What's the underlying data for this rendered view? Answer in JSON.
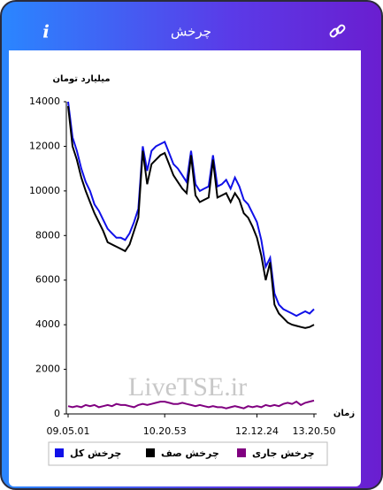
{
  "header": {
    "title": "چرخش",
    "info": "i"
  },
  "chart_data": {
    "type": "line",
    "y_label": "میلیارد تومان",
    "x_label": "زمان",
    "watermark": "LiveTSE.ir",
    "categories": [
      "09.05.01",
      null,
      null,
      null,
      null,
      null,
      null,
      null,
      null,
      null,
      null,
      null,
      null,
      null,
      null,
      null,
      null,
      null,
      null,
      null,
      null,
      null,
      "10.20.53",
      null,
      null,
      null,
      null,
      null,
      null,
      null,
      null,
      null,
      null,
      null,
      null,
      null,
      null,
      null,
      null,
      null,
      null,
      null,
      null,
      "12.12.24",
      null,
      null,
      null,
      null,
      null,
      null,
      null,
      null,
      null,
      null,
      null,
      null,
      "13.20.50"
    ],
    "series": [
      {
        "name": "چرخش کل",
        "color": "#1010e8",
        "values": [
          14000,
          12400,
          11800,
          11000,
          10400,
          10000,
          9400,
          9100,
          8700,
          8300,
          8100,
          7900,
          7900,
          7800,
          8100,
          8600,
          9200,
          12000,
          10900,
          11800,
          12000,
          12100,
          12200,
          11700,
          11200,
          11000,
          10700,
          10400,
          11800,
          10300,
          10000,
          10100,
          10200,
          11600,
          10200,
          10300,
          10500,
          10100,
          10600,
          10200,
          9600,
          9400,
          9000,
          8600,
          7800,
          6600,
          7000,
          5400,
          4900,
          4700,
          4600,
          4500,
          4400,
          4500,
          4600,
          4500,
          4700
        ]
      },
      {
        "name": "چرخش صف",
        "color": "#000000",
        "values": [
          13800,
          12000,
          11400,
          10600,
          10000,
          9500,
          9000,
          8600,
          8200,
          7700,
          7600,
          7500,
          7400,
          7300,
          7600,
          8200,
          8800,
          11800,
          10300,
          11200,
          11400,
          11600,
          11700,
          11200,
          10700,
          10400,
          10100,
          9900,
          11600,
          9800,
          9500,
          9600,
          9700,
          11400,
          9700,
          9800,
          9900,
          9500,
          9900,
          9600,
          9000,
          8800,
          8400,
          7900,
          7100,
          6000,
          6800,
          4900,
          4500,
          4300,
          4100,
          4000,
          3950,
          3900,
          3850,
          3900,
          4000
        ]
      },
      {
        "name": "چرخش جاری",
        "color": "#800080",
        "values": [
          350,
          300,
          350,
          300,
          400,
          350,
          400,
          300,
          350,
          400,
          350,
          450,
          400,
          400,
          350,
          300,
          400,
          450,
          400,
          450,
          500,
          550,
          550,
          500,
          450,
          450,
          500,
          450,
          400,
          350,
          400,
          350,
          300,
          350,
          300,
          300,
          250,
          300,
          350,
          300,
          250,
          350,
          300,
          350,
          300,
          400,
          350,
          400,
          350,
          450,
          500,
          450,
          550,
          400,
          500,
          550,
          600
        ]
      }
    ],
    "ylim": [
      0,
      14000
    ],
    "yticks": [
      0,
      2000,
      4000,
      6000,
      8000,
      10000,
      12000,
      14000
    ],
    "legend": "bottom",
    "grid": false
  }
}
